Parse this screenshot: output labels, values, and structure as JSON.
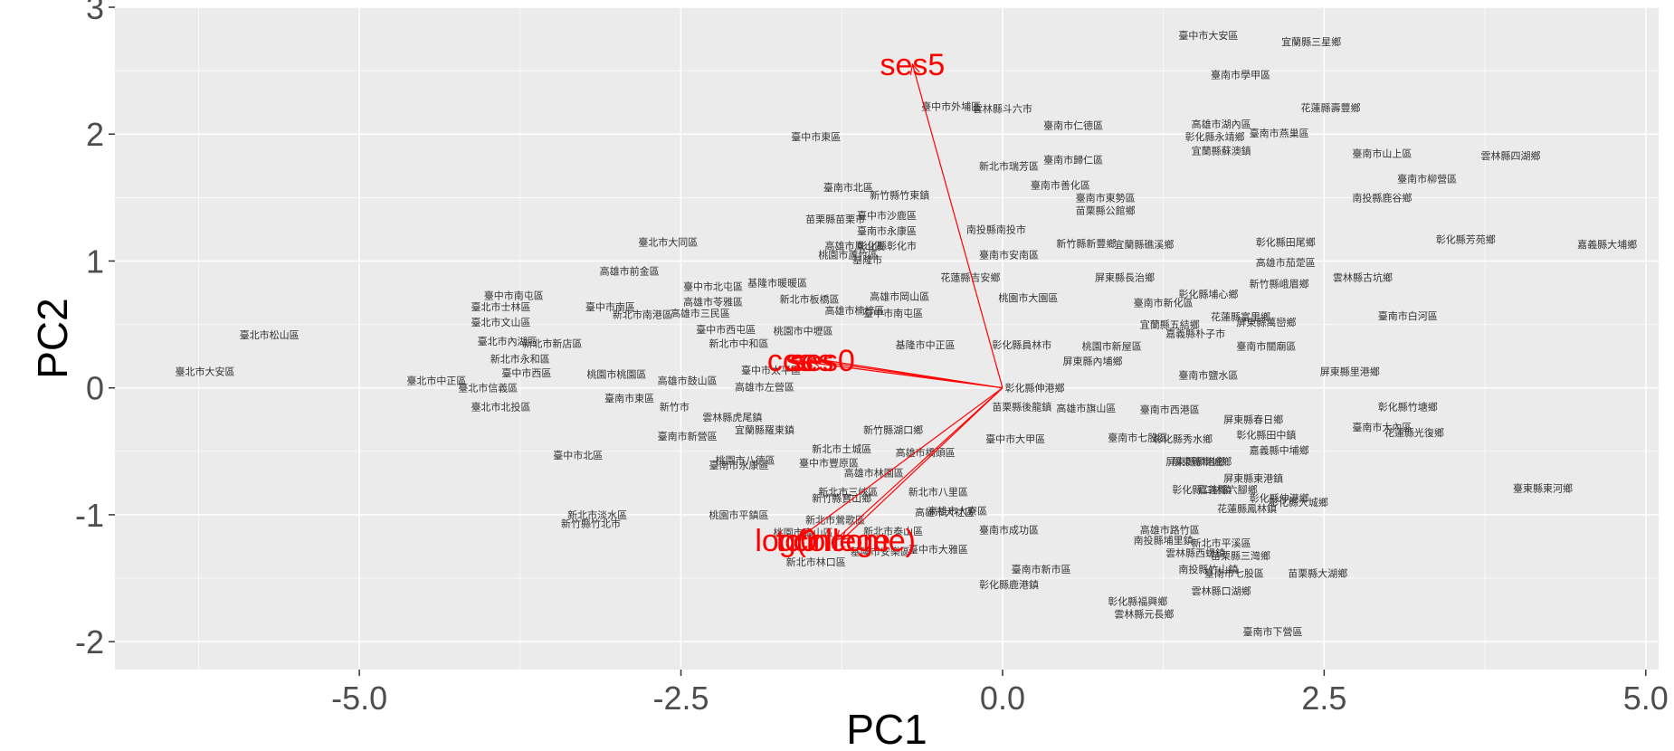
{
  "colors": {
    "panel_background": "#ebebeb",
    "grid_major": "#ffffff",
    "point_label": "#333333",
    "arrow": "#ff0000",
    "tick_label": "#4d4d4d"
  },
  "chart_data": {
    "type": "scatter",
    "subtype": "pca-biplot",
    "title": "",
    "xlabel": "PC1",
    "ylabel": "PC2",
    "xlim": [
      -6.9,
      5.1
    ],
    "ylim": [
      -2.22,
      3.0
    ],
    "x_ticks": [
      -5.0,
      -2.5,
      0.0,
      2.5,
      5.0
    ],
    "x_tick_labels": [
      "-5.0",
      "-2.5",
      "0.0",
      "2.5",
      "5.0"
    ],
    "y_ticks": [
      -2,
      -1,
      0,
      1,
      2,
      3
    ],
    "y_tick_labels": [
      "-2",
      "-1",
      "0",
      "1",
      "2",
      "3"
    ],
    "grid": true,
    "points": [
      {
        "label": "臺北市大安區",
        "x": -6.2,
        "y": 0.13
      },
      {
        "label": "臺北市松山區",
        "x": -5.7,
        "y": 0.42
      },
      {
        "label": "臺北市中正區",
        "x": -4.4,
        "y": 0.06
      },
      {
        "label": "臺北市信義區",
        "x": -4.0,
        "y": 0.0
      },
      {
        "label": "臺北市北投區",
        "x": -3.9,
        "y": -0.15
      },
      {
        "label": "臺中市南屯區",
        "x": -3.8,
        "y": 0.73
      },
      {
        "label": "臺北市士林區",
        "x": -3.9,
        "y": 0.64
      },
      {
        "label": "臺北市文山區",
        "x": -3.9,
        "y": 0.52
      },
      {
        "label": "臺北市內湖區",
        "x": -3.85,
        "y": 0.37
      },
      {
        "label": "新北市新店區",
        "x": -3.5,
        "y": 0.35
      },
      {
        "label": "新北市永和區",
        "x": -3.75,
        "y": 0.23
      },
      {
        "label": "臺中市西區",
        "x": -3.7,
        "y": 0.12
      },
      {
        "label": "臺中市北區",
        "x": -3.3,
        "y": -0.53
      },
      {
        "label": "臺中市南區",
        "x": -3.05,
        "y": 0.64
      },
      {
        "label": "新北市南港區",
        "x": -2.8,
        "y": 0.58
      },
      {
        "label": "高雄市三民區",
        "x": -2.35,
        "y": 0.59
      },
      {
        "label": "桃園市桃園區",
        "x": -3.0,
        "y": 0.11
      },
      {
        "label": "高雄市鼓山區",
        "x": -2.45,
        "y": 0.06
      },
      {
        "label": "臺南市東區",
        "x": -2.9,
        "y": -0.08
      },
      {
        "label": "新竹市",
        "x": -2.55,
        "y": -0.15
      },
      {
        "label": "臺北市大同區",
        "x": -2.6,
        "y": 1.15
      },
      {
        "label": "高雄市前金區",
        "x": -2.9,
        "y": 0.92
      },
      {
        "label": "臺中市北屯區",
        "x": -2.25,
        "y": 0.8
      },
      {
        "label": "高雄市苓雅區",
        "x": -2.25,
        "y": 0.68
      },
      {
        "label": "基隆市暖暖區",
        "x": -1.75,
        "y": 0.83
      },
      {
        "label": "新北市板橋區",
        "x": -1.5,
        "y": 0.7
      },
      {
        "label": "臺中市西屯區",
        "x": -2.15,
        "y": 0.46
      },
      {
        "label": "新北市中和區",
        "x": -2.05,
        "y": 0.35
      },
      {
        "label": "桃園市中壢區",
        "x": -1.55,
        "y": 0.45
      },
      {
        "label": "臺中市太平區",
        "x": -1.8,
        "y": 0.14
      },
      {
        "label": "高雄市左營區",
        "x": -1.85,
        "y": 0.01
      },
      {
        "label": "雲林縣虎尾鎮",
        "x": -2.1,
        "y": -0.23
      },
      {
        "label": "宜蘭縣羅東鎮",
        "x": -1.85,
        "y": -0.33
      },
      {
        "label": "臺南市新營區",
        "x": -2.45,
        "y": -0.38
      },
      {
        "label": "桃園市八德區",
        "x": -2.0,
        "y": -0.57
      },
      {
        "label": "臺南市永康區",
        "x": -2.05,
        "y": -0.61
      },
      {
        "label": "桃園市平鎮區",
        "x": -2.05,
        "y": -1.0
      },
      {
        "label": "新北市淡水區",
        "x": -3.15,
        "y": -1.0
      },
      {
        "label": "新竹縣竹北市",
        "x": -3.2,
        "y": -1.07
      },
      {
        "label": "桃園市龜山區",
        "x": -1.55,
        "y": -1.14
      },
      {
        "label": "新北市林口區",
        "x": -1.45,
        "y": -1.37
      },
      {
        "label": "臺中市東區",
        "x": -1.45,
        "y": 1.98
      },
      {
        "label": "臺南市北區",
        "x": -1.2,
        "y": 1.58
      },
      {
        "label": "新竹縣竹東鎮",
        "x": -0.8,
        "y": 1.52
      },
      {
        "label": "苗栗縣苗栗市",
        "x": -1.3,
        "y": 1.33
      },
      {
        "label": "臺中市沙鹿區",
        "x": -0.9,
        "y": 1.36
      },
      {
        "label": "臺南市永康區",
        "x": -0.9,
        "y": 1.24
      },
      {
        "label": "高雄市鳳山區",
        "x": -1.15,
        "y": 1.12
      },
      {
        "label": "彰化縣彰化市",
        "x": -0.9,
        "y": 1.12
      },
      {
        "label": "桃園市蘆竹區",
        "x": -1.2,
        "y": 1.05
      },
      {
        "label": "基隆市",
        "x": -1.05,
        "y": 1.01
      },
      {
        "label": "高雄市岡山區",
        "x": -0.8,
        "y": 0.72
      },
      {
        "label": "高雄市楠梓區",
        "x": -1.15,
        "y": 0.61
      },
      {
        "label": "臺中市南屯區",
        "x": -0.85,
        "y": 0.59
      },
      {
        "label": "基隆市中正區",
        "x": -0.6,
        "y": 0.34
      },
      {
        "label": "南投縣南投市",
        "x": -0.05,
        "y": 1.25
      },
      {
        "label": "花蓮縣吉安鄉",
        "x": -0.25,
        "y": 0.87
      },
      {
        "label": "臺中市外埔區",
        "x": -0.4,
        "y": 2.22
      },
      {
        "label": "雲林縣斗六市",
        "x": 0.0,
        "y": 2.2
      },
      {
        "label": "臺南市仁德區",
        "x": 0.55,
        "y": 2.07
      },
      {
        "label": "新北市瑞芳區",
        "x": 0.05,
        "y": 1.75
      },
      {
        "label": "臺南市歸仁區",
        "x": 0.55,
        "y": 1.8
      },
      {
        "label": "臺南市善化區",
        "x": 0.45,
        "y": 1.6
      },
      {
        "label": "臺南市東勢區",
        "x": 0.8,
        "y": 1.5
      },
      {
        "label": "苗栗縣公館鄉",
        "x": 0.8,
        "y": 1.4
      },
      {
        "label": "新竹縣新豐鄉",
        "x": 0.65,
        "y": 1.14
      },
      {
        "label": "宜蘭縣礁溪鄉",
        "x": 1.1,
        "y": 1.13
      },
      {
        "label": "臺南市安南區",
        "x": 0.05,
        "y": 1.05
      },
      {
        "label": "屏東縣長治鄉",
        "x": 0.95,
        "y": 0.87
      },
      {
        "label": "桃園市大園區",
        "x": 0.2,
        "y": 0.71
      },
      {
        "label": "彰化縣員林市",
        "x": 0.15,
        "y": 0.34
      },
      {
        "label": "桃園市新屋區",
        "x": 0.85,
        "y": 0.33
      },
      {
        "label": "屏東縣內埔鄉",
        "x": 0.7,
        "y": 0.21
      },
      {
        "label": "彰化縣伸港鄉",
        "x": 0.25,
        "y": 0.0
      },
      {
        "label": "苗栗縣後龍鎮",
        "x": 0.15,
        "y": -0.15
      },
      {
        "label": "高雄市旗山區",
        "x": 0.65,
        "y": -0.16
      },
      {
        "label": "臺中市大甲區",
        "x": 0.1,
        "y": -0.4
      },
      {
        "label": "臺南市七股區",
        "x": 1.05,
        "y": -0.39
      },
      {
        "label": "臺南市西港區",
        "x": 1.3,
        "y": -0.17
      },
      {
        "label": "彰化縣秀水鄉",
        "x": 1.4,
        "y": -0.4
      },
      {
        "label": "屏東縣麟洛鄉",
        "x": 1.5,
        "y": -0.58
      },
      {
        "label": "彰化縣二林鎮",
        "x": 1.55,
        "y": -0.8
      },
      {
        "label": "高雄市路竹區",
        "x": 1.3,
        "y": -1.12
      },
      {
        "label": "南投縣埔里鎮",
        "x": 1.25,
        "y": -1.2
      },
      {
        "label": "雲林縣西螺鎮",
        "x": 1.5,
        "y": -1.3
      },
      {
        "label": "南投縣竹山鎮",
        "x": 1.6,
        "y": -1.43
      },
      {
        "label": "臺南市學甲區",
        "x": 1.85,
        "y": 2.47
      },
      {
        "label": "臺中市大安區",
        "x": 1.6,
        "y": 2.78
      },
      {
        "label": "宜蘭縣三星鄉",
        "x": 2.4,
        "y": 2.73
      },
      {
        "label": "花蓮縣壽豐鄉",
        "x": 2.55,
        "y": 2.21
      },
      {
        "label": "高雄市湖內區",
        "x": 1.7,
        "y": 2.08
      },
      {
        "label": "彰化縣永靖鄉",
        "x": 1.65,
        "y": 1.98
      },
      {
        "label": "臺南市燕巢區",
        "x": 2.15,
        "y": 2.01
      },
      {
        "label": "宜蘭縣蘇澳鎮",
        "x": 1.7,
        "y": 1.87
      },
      {
        "label": "臺南市山上區",
        "x": 2.95,
        "y": 1.85
      },
      {
        "label": "雲林縣四湖鄉",
        "x": 3.95,
        "y": 1.83
      },
      {
        "label": "臺南市柳營區",
        "x": 3.3,
        "y": 1.65
      },
      {
        "label": "南投縣鹿谷鄉",
        "x": 2.95,
        "y": 1.5
      },
      {
        "label": "彰化縣芳苑鄉",
        "x": 3.6,
        "y": 1.17
      },
      {
        "label": "嘉義縣大埔鄉",
        "x": 4.7,
        "y": 1.13
      },
      {
        "label": "彰化縣田尾鄉",
        "x": 2.2,
        "y": 1.15
      },
      {
        "label": "高雄市茄萣區",
        "x": 2.2,
        "y": 0.99
      },
      {
        "label": "雲林縣古坑鄉",
        "x": 2.8,
        "y": 0.87
      },
      {
        "label": "新竹縣峨眉鄉",
        "x": 2.15,
        "y": 0.82
      },
      {
        "label": "彰化縣埔心鄉",
        "x": 1.6,
        "y": 0.74
      },
      {
        "label": "臺南市新化區",
        "x": 1.25,
        "y": 0.67
      },
      {
        "label": "花蓮縣富里鄉",
        "x": 1.85,
        "y": 0.56
      },
      {
        "label": "屏東縣萬巒鄉",
        "x": 2.05,
        "y": 0.52
      },
      {
        "label": "臺南市白河區",
        "x": 3.15,
        "y": 0.57
      },
      {
        "label": "宜蘭縣五結鄉",
        "x": 1.3,
        "y": 0.5
      },
      {
        "label": "嘉義縣朴子市",
        "x": 1.5,
        "y": 0.43
      },
      {
        "label": "臺南市關廟區",
        "x": 2.05,
        "y": 0.33
      },
      {
        "label": "臺南市鹽水區",
        "x": 1.6,
        "y": 0.1
      },
      {
        "label": "屏東縣里港鄉",
        "x": 2.7,
        "y": 0.13
      },
      {
        "label": "屏東縣春日鄉",
        "x": 1.95,
        "y": -0.25
      },
      {
        "label": "彰化縣竹塘鄉",
        "x": 3.15,
        "y": -0.15
      },
      {
        "label": "臺南市大內區",
        "x": 2.95,
        "y": -0.31
      },
      {
        "label": "花蓮縣光復鄉",
        "x": 3.2,
        "y": -0.35
      },
      {
        "label": "嘉義縣中埔鄉",
        "x": 2.15,
        "y": -0.49
      },
      {
        "label": "彰化縣田中鎮",
        "x": 2.05,
        "y": -0.37
      },
      {
        "label": "屏東縣車城鄉",
        "x": 1.55,
        "y": -0.58
      },
      {
        "label": "屏東縣東港鎮",
        "x": 1.95,
        "y": -0.71
      },
      {
        "label": "嘉義縣六腳鄉",
        "x": 1.75,
        "y": -0.8
      },
      {
        "label": "彰化縣伸港鄉",
        "x": 2.15,
        "y": -0.87
      },
      {
        "label": "彰化縣大城鄉",
        "x": 2.3,
        "y": -0.9
      },
      {
        "label": "花蓮縣鳳林鎮",
        "x": 1.9,
        "y": -0.95
      },
      {
        "label": "臺東縣東河鄉",
        "x": 4.2,
        "y": -0.79
      },
      {
        "label": "苗栗縣大湖鄉",
        "x": 2.45,
        "y": -1.46
      },
      {
        "label": "新北市平溪區",
        "x": 1.7,
        "y": -1.22
      },
      {
        "label": "苗栗縣三灣鄉",
        "x": 1.85,
        "y": -1.32
      },
      {
        "label": "臺南市七股區",
        "x": 1.8,
        "y": -1.46
      },
      {
        "label": "雲林縣口湖鄉",
        "x": 1.7,
        "y": -1.6
      },
      {
        "label": "臺南市下營區",
        "x": 2.1,
        "y": -1.92
      },
      {
        "label": "彰化縣福興鄉",
        "x": 1.05,
        "y": -1.68
      },
      {
        "label": "雲林縣元長鄉",
        "x": 1.1,
        "y": -1.78
      },
      {
        "label": "彰化縣鹿港鎮",
        "x": 0.05,
        "y": -1.55
      },
      {
        "label": "臺南市新市區",
        "x": 0.3,
        "y": -1.43
      },
      {
        "label": "臺南市成功區",
        "x": 0.05,
        "y": -1.12
      },
      {
        "label": "高雄市大寮區",
        "x": -0.35,
        "y": -0.97
      },
      {
        "label": "新北市八里區",
        "x": -0.5,
        "y": -0.82
      },
      {
        "label": "新北市三峽區",
        "x": -1.2,
        "y": -0.82
      },
      {
        "label": "新北市土城區",
        "x": -1.25,
        "y": -0.48
      },
      {
        "label": "臺中市豐原區",
        "x": -1.35,
        "y": -0.59
      },
      {
        "label": "新竹縣湖口鄉",
        "x": -0.85,
        "y": -0.33
      },
      {
        "label": "高雄市橋頭區",
        "x": -0.6,
        "y": -0.51
      },
      {
        "label": "新北市鶯歌區",
        "x": -1.3,
        "y": -1.04
      },
      {
        "label": "新北市泰山區",
        "x": -0.85,
        "y": -1.13
      },
      {
        "label": "基隆市安樂區",
        "x": -0.95,
        "y": -1.29
      },
      {
        "label": "臺中市大雅區",
        "x": -0.5,
        "y": -1.27
      },
      {
        "label": "高雄市大社區",
        "x": -0.45,
        "y": -0.98
      },
      {
        "label": "新竹縣寶山鄉",
        "x": -1.25,
        "y": -0.87
      },
      {
        "label": "高雄市林園區",
        "x": -1.0,
        "y": -0.67
      }
    ],
    "arrows": [
      {
        "label": "ses5",
        "x": -0.7,
        "y": 2.55
      },
      {
        "label": "ses",
        "x": -1.5,
        "y": 0.22
      },
      {
        "label": "ccs",
        "x": -1.65,
        "y": 0.22
      },
      {
        "label": "ses0",
        "x": -1.4,
        "y": 0.22
      },
      {
        "label": "log(income)",
        "x": -1.3,
        "y": -1.2
      },
      {
        "label": "college",
        "x": -1.25,
        "y": -1.2
      },
      {
        "label": "tc0",
        "x": -1.6,
        "y": -1.2
      }
    ]
  }
}
